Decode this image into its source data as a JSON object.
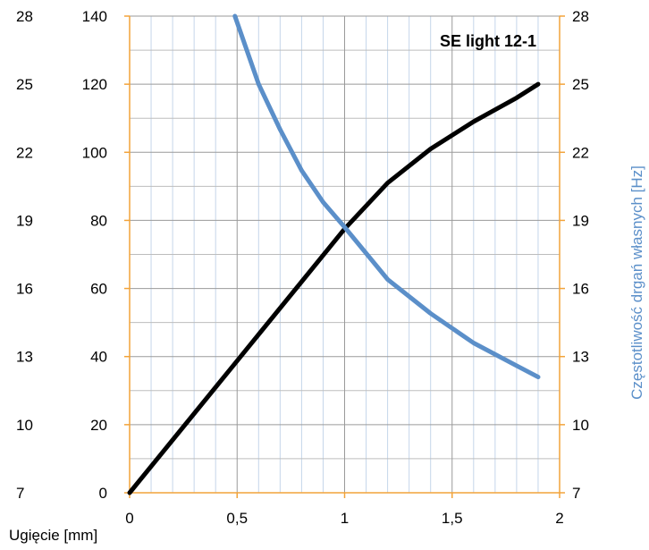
{
  "chart_data": {
    "type": "line",
    "title": "SE light 12-1",
    "xlabel": "Ugięcie [mm]",
    "ylabel_right": "Częstotliwość drgań własnych [Hz]",
    "xlim": [
      0,
      2
    ],
    "ylim_load": [
      0,
      140
    ],
    "ylim_freq": [
      7,
      28
    ],
    "x_ticks": [
      "0",
      "0,5",
      "1",
      "1,5",
      "2"
    ],
    "y_ticks_load": [
      "0",
      "20",
      "40",
      "60",
      "80",
      "100",
      "120",
      "140"
    ],
    "y_ticks_freq_left": [
      "7",
      "10",
      "13",
      "16",
      "19",
      "22",
      "25",
      "28"
    ],
    "y_ticks_freq_right": [
      "7",
      "10",
      "13",
      "16",
      "19",
      "22",
      "25",
      "28"
    ],
    "grid": true,
    "colors": {
      "load_series": "#000000",
      "freq_series": "#5b8fc9",
      "axis_accent": "#f2a33a",
      "grid_major": "#9a9a9a",
      "grid_minor": "#c5d6ea"
    },
    "series": [
      {
        "axis": "load",
        "x": [
          0,
          0.2,
          0.4,
          0.6,
          0.8,
          1.0,
          1.2,
          1.4,
          1.6,
          1.8,
          1.9
        ],
        "y": [
          0,
          15.5,
          31,
          46.5,
          62,
          77.5,
          91,
          101,
          109,
          116,
          120
        ]
      },
      {
        "axis": "freq",
        "x": [
          0.49,
          0.6,
          0.7,
          0.8,
          0.9,
          1.0,
          1.2,
          1.4,
          1.6,
          1.8,
          1.9
        ],
        "y": [
          28,
          25,
          23,
          21.2,
          19.8,
          18.7,
          16.4,
          14.9,
          13.6,
          12.6,
          12.1
        ]
      }
    ]
  }
}
